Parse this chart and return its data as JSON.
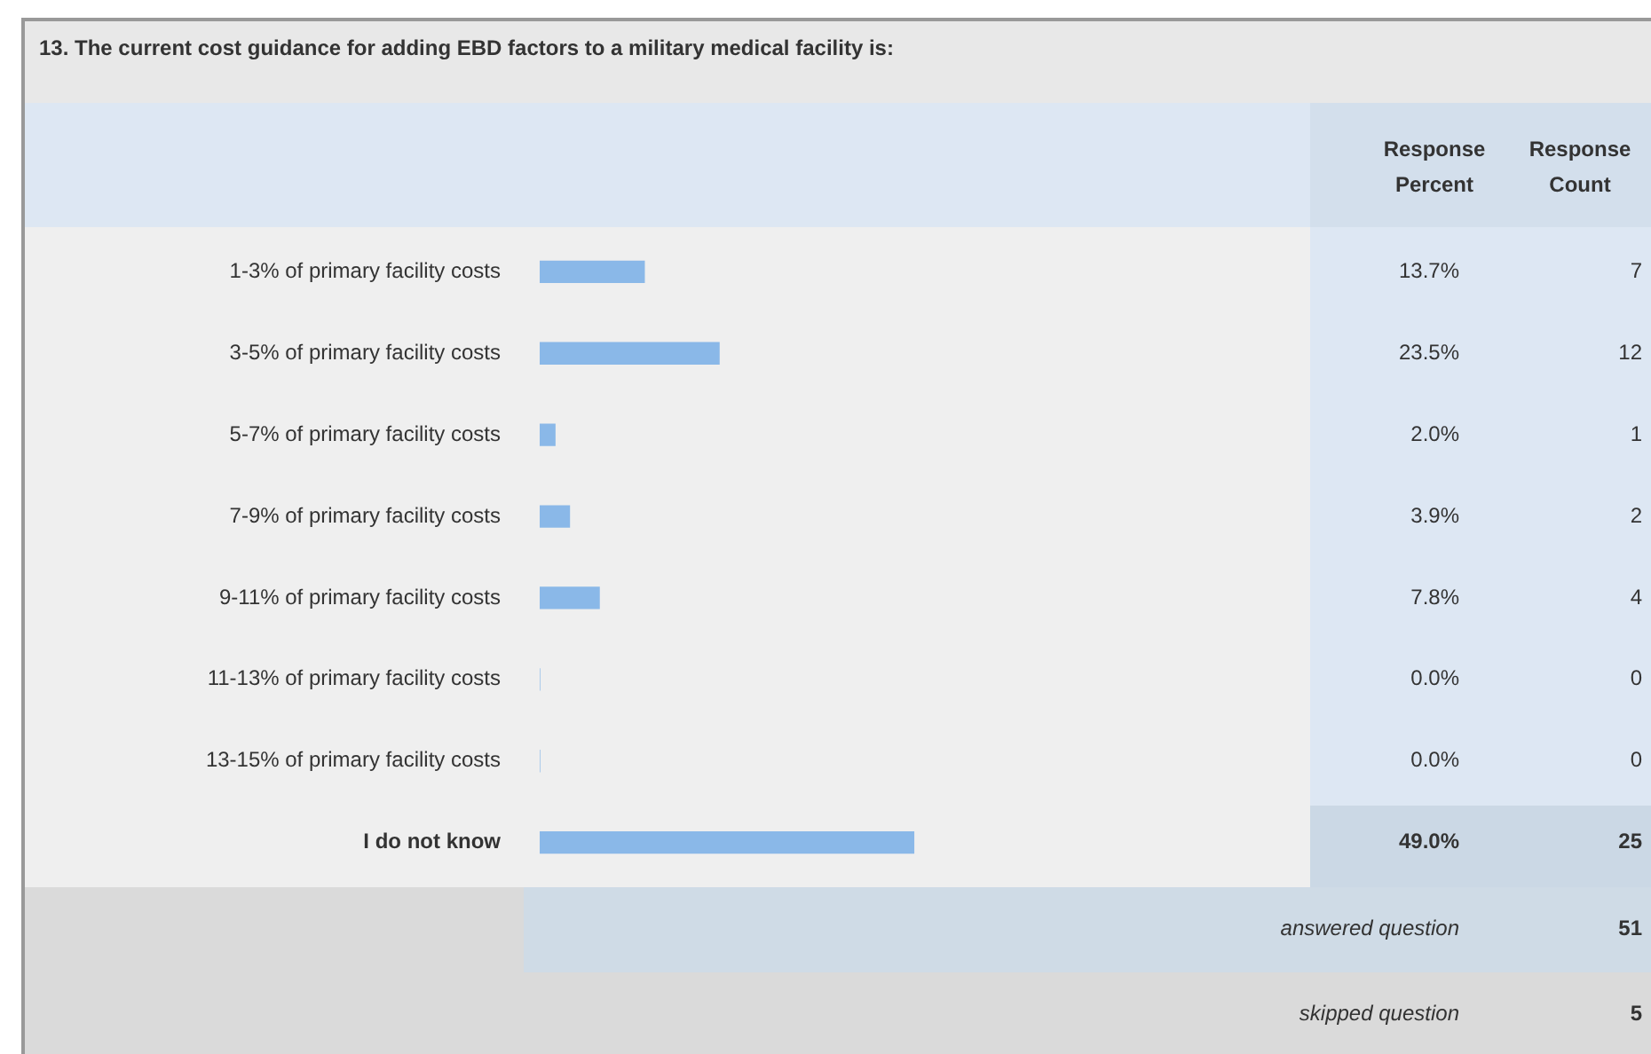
{
  "chart_data": {
    "type": "bar",
    "orientation": "horizontal",
    "title": "13. The current cost guidance for adding EBD factors to a military medical facility is:",
    "categories": [
      "1-3% of primary facility costs",
      "3-5% of primary facility costs",
      "5-7% of primary facility costs",
      "7-9% of primary facility costs",
      "9-11% of primary facility costs",
      "11-13% of primary facility costs",
      "13-15% of primary facility costs",
      "I do not know"
    ],
    "values": [
      13.7,
      23.5,
      2.0,
      3.9,
      7.8,
      0.0,
      0.0,
      49.0
    ],
    "value_labels": [
      "13.7%",
      "23.5%",
      "2.0%",
      "3.9%",
      "7.8%",
      "0.0%",
      "0.0%",
      "49.0%"
    ],
    "color": "#8ab8e8",
    "xlim": [
      0,
      100
    ],
    "tick_labels": "y",
    "grid": false,
    "annotations": [
      "Response Percent",
      "Response Count",
      "7",
      "12",
      "1",
      "2",
      "4",
      "0",
      "0",
      "25",
      "answered question",
      "51",
      "skipped question",
      "5"
    ]
  }
}
